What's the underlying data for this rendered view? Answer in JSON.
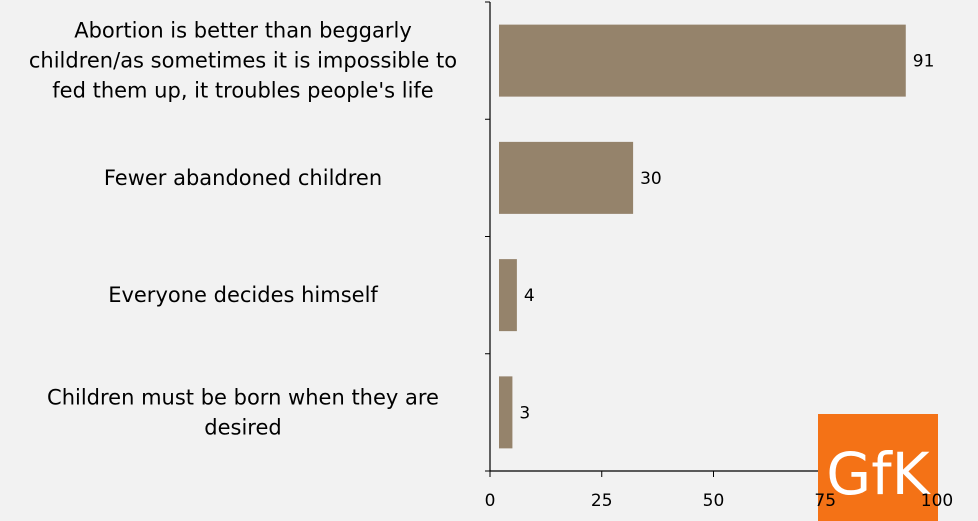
{
  "chart_data": {
    "type": "bar",
    "orientation": "horizontal",
    "categories": [
      [
        "Abortion is better than beggarly",
        "children/as sometimes it is impossible to",
        "fed them up, it troubles people's life"
      ],
      [
        "Fewer abandoned children"
      ],
      [
        "Everyone decides himself"
      ],
      [
        "Children must be born when they are",
        "desired"
      ]
    ],
    "values": [
      91,
      30,
      4,
      3
    ],
    "value_labels": [
      "91",
      "30",
      "4",
      "3"
    ],
    "xlim": [
      0,
      100
    ],
    "xticks": [
      0,
      25,
      50,
      75,
      100
    ],
    "xtick_labels": [
      "0",
      "25",
      "50",
      "75",
      "100"
    ],
    "grid": false,
    "colors": {
      "bar": "#95836b",
      "axis": "#000000",
      "background": "#f2f2f2",
      "logo_bg": "#f47216"
    }
  },
  "logo": {
    "text": "GfK"
  }
}
